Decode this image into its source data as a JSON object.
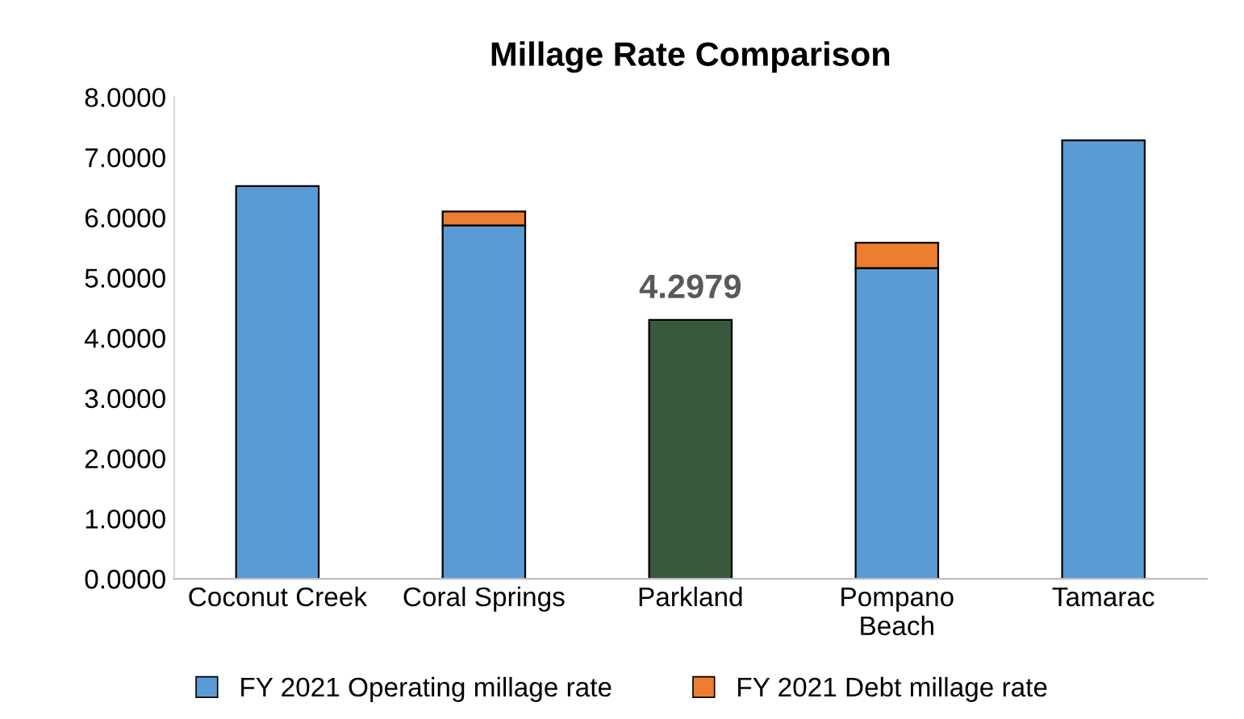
{
  "chart_data": {
    "type": "bar",
    "title": "Millage Rate Comparison",
    "categories": [
      "Coconut Creek",
      "Coral Springs",
      "Parkland",
      "Pompano\nBeach",
      "Tamarac"
    ],
    "stacked": true,
    "series": [
      {
        "name": "FY 2021 Operating millage rate",
        "color": "#5b9bd5",
        "colors": [
          "#5b9bd5",
          "#5b9bd5",
          "#375a3c",
          "#5b9bd5",
          "#5b9bd5"
        ],
        "values": [
          6.52,
          5.87,
          4.2979,
          5.16,
          7.28
        ],
        "value_labels": [
          null,
          null,
          "4.2979",
          null,
          null
        ]
      },
      {
        "name": "FY 2021 Debt millage rate",
        "color": "#ed7d31",
        "values": [
          null,
          0.23,
          null,
          0.42,
          null
        ]
      }
    ],
    "ylim": [
      0,
      8
    ],
    "yticks": [
      {
        "value": 0,
        "label": "0.0000"
      },
      {
        "value": 1,
        "label": "1.0000"
      },
      {
        "value": 2,
        "label": "2.0000"
      },
      {
        "value": 3,
        "label": "3.0000"
      },
      {
        "value": 4,
        "label": "4.0000"
      },
      {
        "value": 5,
        "label": "5.0000"
      },
      {
        "value": 6,
        "label": "6.0000"
      },
      {
        "value": 7,
        "label": "7.0000"
      },
      {
        "value": 8,
        "label": "8.0000"
      }
    ],
    "legend": "bottom"
  }
}
